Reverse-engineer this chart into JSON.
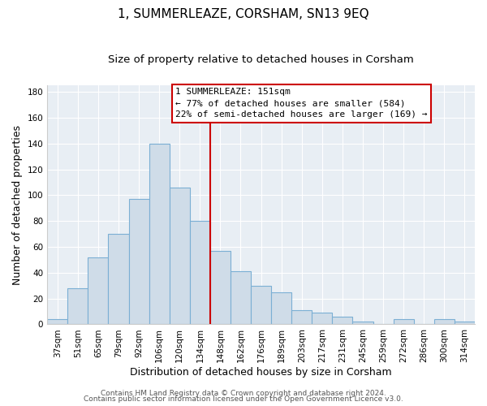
{
  "title": "1, SUMMERLEAZE, CORSHAM, SN13 9EQ",
  "subtitle": "Size of property relative to detached houses in Corsham",
  "xlabel": "Distribution of detached houses by size in Corsham",
  "ylabel": "Number of detached properties",
  "bar_labels": [
    "37sqm",
    "51sqm",
    "65sqm",
    "79sqm",
    "92sqm",
    "106sqm",
    "120sqm",
    "134sqm",
    "148sqm",
    "162sqm",
    "176sqm",
    "189sqm",
    "203sqm",
    "217sqm",
    "231sqm",
    "245sqm",
    "259sqm",
    "272sqm",
    "286sqm",
    "300sqm",
    "314sqm"
  ],
  "bar_heights": [
    4,
    28,
    52,
    70,
    97,
    140,
    106,
    80,
    57,
    41,
    30,
    25,
    11,
    9,
    6,
    2,
    0,
    4,
    0,
    4,
    2
  ],
  "bar_color": "#cfdce8",
  "bar_edge_color": "#7bafd4",
  "vline_x_left": 8,
  "vline_color": "#cc0000",
  "annotation_title": "1 SUMMERLEAZE: 151sqm",
  "annotation_line1": "← 77% of detached houses are smaller (584)",
  "annotation_line2": "22% of semi-detached houses are larger (169) →",
  "annotation_box_color": "#ffffff",
  "annotation_box_edge": "#cc0000",
  "ylim": [
    0,
    185
  ],
  "yticks": [
    0,
    20,
    40,
    60,
    80,
    100,
    120,
    140,
    160,
    180
  ],
  "footer1": "Contains HM Land Registry data © Crown copyright and database right 2024.",
  "footer2": "Contains public sector information licensed under the Open Government Licence v3.0.",
  "plot_bg_color": "#e8eef4",
  "fig_bg_color": "#ffffff",
  "grid_color": "#ffffff",
  "title_fontsize": 11,
  "subtitle_fontsize": 9.5,
  "axis_label_fontsize": 9,
  "tick_fontsize": 7.5,
  "footer_fontsize": 6.5,
  "ann_fontsize": 8
}
